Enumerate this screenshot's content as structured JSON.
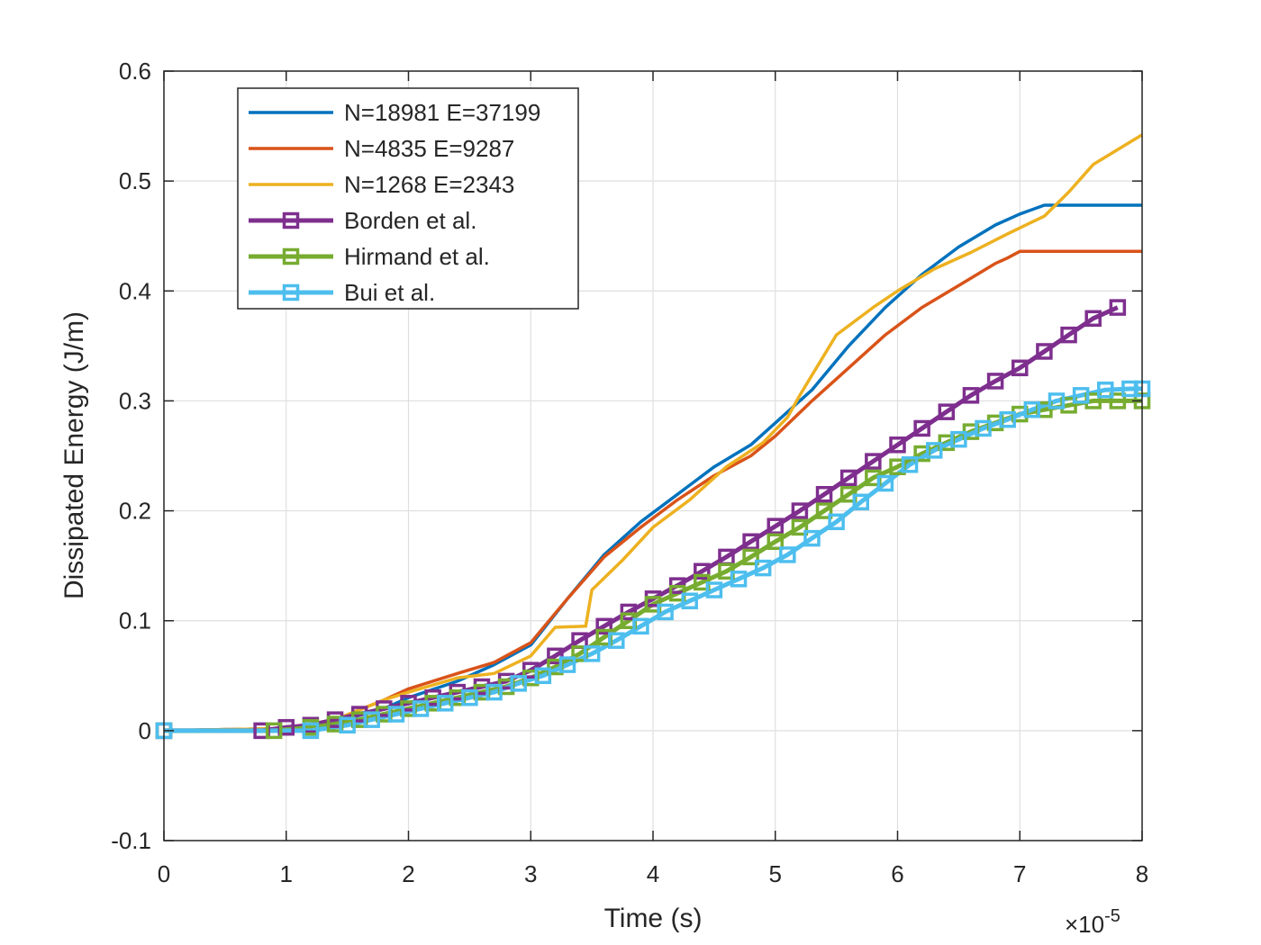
{
  "chart_data": {
    "type": "line",
    "title": "",
    "xlabel": "Time (s)",
    "ylabel": "Dissipated Energy (J/m)",
    "x_exponent_label": "×10",
    "x_exponent_power": "-5",
    "xlim": [
      0,
      8
    ],
    "ylim": [
      -0.1,
      0.6
    ],
    "xticks": [
      0,
      1,
      2,
      3,
      4,
      5,
      6,
      7,
      8
    ],
    "xtick_labels": [
      "0",
      "1",
      "2",
      "3",
      "4",
      "5",
      "6",
      "7",
      "8"
    ],
    "yticks": [
      -0.1,
      0,
      0.1,
      0.2,
      0.3,
      0.4,
      0.5,
      0.6
    ],
    "ytick_labels": [
      "-0.1",
      "0",
      "0.1",
      "0.2",
      "0.3",
      "0.4",
      "0.5",
      "0.6"
    ],
    "grid": true,
    "legend_position": "top-left",
    "series": [
      {
        "name": "N=18981 E=37199",
        "color": "#0072BD",
        "marker": "none",
        "x": [
          0,
          1.0,
          1.4,
          1.8,
          2.0,
          2.4,
          2.7,
          3.0,
          3.3,
          3.6,
          3.9,
          4.2,
          4.5,
          4.8,
          5.0,
          5.3,
          5.6,
          5.9,
          6.2,
          6.5,
          6.8,
          7.0,
          7.2,
          7.5,
          8.0
        ],
        "y": [
          0,
          0.002,
          0.008,
          0.02,
          0.03,
          0.045,
          0.06,
          0.078,
          0.12,
          0.16,
          0.19,
          0.215,
          0.24,
          0.26,
          0.28,
          0.31,
          0.35,
          0.385,
          0.415,
          0.44,
          0.46,
          0.47,
          0.478,
          0.478,
          0.478
        ]
      },
      {
        "name": "N=4835 E=9287",
        "color": "#D95319",
        "marker": "none",
        "x": [
          0,
          1.0,
          1.4,
          1.8,
          2.0,
          2.4,
          2.7,
          3.0,
          3.3,
          3.6,
          3.9,
          4.2,
          4.5,
          4.8,
          5.0,
          5.3,
          5.6,
          5.9,
          6.2,
          6.5,
          6.8,
          6.9,
          7.0,
          7.5,
          8.0
        ],
        "y": [
          0,
          0.002,
          0.01,
          0.028,
          0.038,
          0.052,
          0.062,
          0.08,
          0.12,
          0.158,
          0.185,
          0.21,
          0.232,
          0.25,
          0.268,
          0.3,
          0.33,
          0.36,
          0.385,
          0.405,
          0.425,
          0.43,
          0.436,
          0.436,
          0.436
        ]
      },
      {
        "name": "N=1268 E=2343",
        "color": "#EDB120",
        "marker": "none",
        "x": [
          0,
          1.0,
          1.4,
          1.8,
          2.0,
          2.4,
          2.7,
          3.0,
          3.2,
          3.45,
          3.5,
          3.75,
          4.0,
          4.3,
          4.6,
          4.9,
          5.1,
          5.2,
          5.5,
          5.8,
          6.0,
          6.3,
          6.6,
          6.9,
          7.2,
          7.4,
          7.6,
          8.0
        ],
        "y": [
          0,
          0.002,
          0.01,
          0.028,
          0.035,
          0.048,
          0.052,
          0.068,
          0.094,
          0.095,
          0.128,
          0.155,
          0.185,
          0.21,
          0.24,
          0.262,
          0.285,
          0.305,
          0.36,
          0.385,
          0.4,
          0.42,
          0.435,
          0.452,
          0.468,
          0.49,
          0.515,
          0.542
        ]
      },
      {
        "name": "Borden et al.",
        "color": "#7E2F8E",
        "marker": "square",
        "x": [
          0,
          0.8,
          1.0,
          1.2,
          1.4,
          1.6,
          1.8,
          2.0,
          2.2,
          2.4,
          2.6,
          2.8,
          3.0,
          3.2,
          3.4,
          3.6,
          3.8,
          4.0,
          4.2,
          4.4,
          4.6,
          4.8,
          5.0,
          5.2,
          5.4,
          5.6,
          5.8,
          6.0,
          6.2,
          6.4,
          6.6,
          6.8,
          7.0,
          7.2,
          7.4,
          7.6,
          7.8
        ],
        "y": [
          0,
          0.0,
          0.003,
          0.005,
          0.01,
          0.015,
          0.02,
          0.025,
          0.03,
          0.035,
          0.04,
          0.045,
          0.055,
          0.068,
          0.082,
          0.095,
          0.108,
          0.12,
          0.132,
          0.145,
          0.158,
          0.172,
          0.186,
          0.2,
          0.215,
          0.23,
          0.245,
          0.26,
          0.275,
          0.29,
          0.305,
          0.318,
          0.33,
          0.345,
          0.36,
          0.375,
          0.385
        ]
      },
      {
        "name": "Hirmand et al.",
        "color": "#77AC30",
        "marker": "square",
        "x": [
          0,
          0.9,
          1.2,
          1.4,
          1.6,
          1.8,
          2.0,
          2.2,
          2.4,
          2.6,
          2.8,
          3.0,
          3.2,
          3.4,
          3.6,
          3.8,
          4.0,
          4.2,
          4.4,
          4.6,
          4.8,
          5.0,
          5.2,
          5.4,
          5.6,
          5.8,
          6.0,
          6.2,
          6.4,
          6.6,
          6.8,
          7.0,
          7.2,
          7.4,
          7.6,
          7.8,
          8.0
        ],
        "y": [
          0,
          0.0,
          0.003,
          0.006,
          0.01,
          0.015,
          0.02,
          0.025,
          0.03,
          0.035,
          0.04,
          0.048,
          0.058,
          0.07,
          0.085,
          0.1,
          0.115,
          0.125,
          0.135,
          0.145,
          0.158,
          0.172,
          0.185,
          0.2,
          0.215,
          0.23,
          0.24,
          0.252,
          0.262,
          0.272,
          0.28,
          0.288,
          0.292,
          0.296,
          0.3,
          0.3,
          0.3
        ]
      },
      {
        "name": "Bui et al.",
        "color": "#4DBEEE",
        "marker": "square",
        "x": [
          0,
          1.2,
          1.5,
          1.7,
          1.9,
          2.1,
          2.3,
          2.5,
          2.7,
          2.9,
          3.1,
          3.3,
          3.5,
          3.7,
          3.9,
          4.1,
          4.3,
          4.5,
          4.7,
          4.9,
          5.1,
          5.3,
          5.5,
          5.7,
          5.9,
          6.1,
          6.3,
          6.5,
          6.7,
          6.9,
          7.1,
          7.3,
          7.5,
          7.7,
          7.9,
          8.0
        ],
        "y": [
          0,
          0.0,
          0.005,
          0.01,
          0.015,
          0.02,
          0.025,
          0.03,
          0.035,
          0.043,
          0.05,
          0.06,
          0.07,
          0.082,
          0.095,
          0.108,
          0.118,
          0.128,
          0.138,
          0.148,
          0.16,
          0.175,
          0.19,
          0.208,
          0.225,
          0.242,
          0.255,
          0.265,
          0.275,
          0.283,
          0.292,
          0.3,
          0.305,
          0.31,
          0.311,
          0.311
        ]
      }
    ]
  }
}
